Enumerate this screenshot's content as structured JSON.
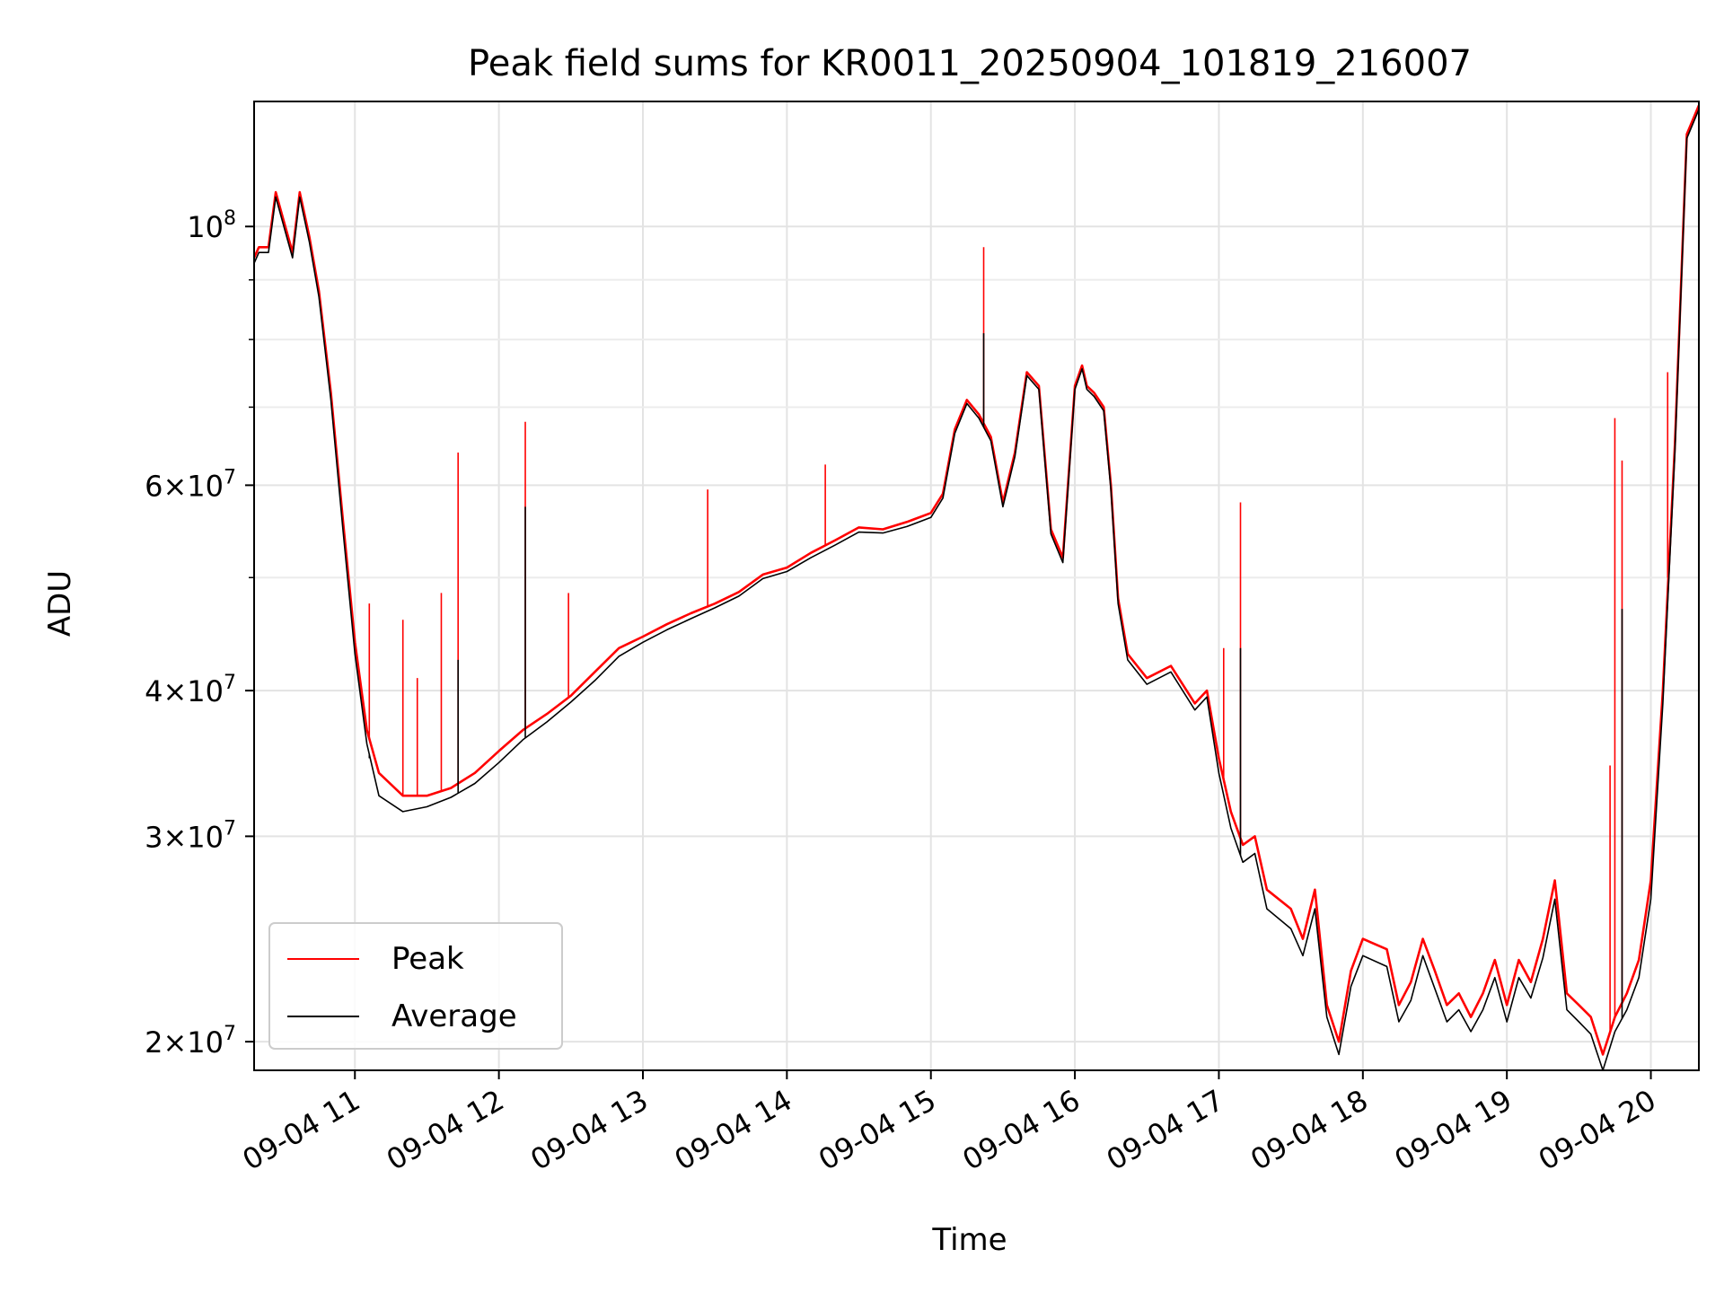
{
  "chart_data": {
    "type": "line",
    "title": "Peak field sums for KR0011_20250904_101819_216007",
    "xlabel": "Time",
    "ylabel": "ADU",
    "yscale": "log",
    "xlim": [
      "09-04 10:18",
      "09-04 20:20"
    ],
    "ylim": [
      18900000,
      128000000
    ],
    "grid": true,
    "legend_position": "lower-left",
    "x_ticks": [
      {
        "label": "09-04 11",
        "time": "11:00"
      },
      {
        "label": "09-04 12",
        "time": "12:00"
      },
      {
        "label": "09-04 13",
        "time": "13:00"
      },
      {
        "label": "09-04 14",
        "time": "14:00"
      },
      {
        "label": "09-04 15",
        "time": "15:00"
      },
      {
        "label": "09-04 16",
        "time": "16:00"
      },
      {
        "label": "09-04 17",
        "time": "17:00"
      },
      {
        "label": "09-04 18",
        "time": "18:00"
      },
      {
        "label": "09-04 19",
        "time": "19:00"
      },
      {
        "label": "09-04 20",
        "time": "20:00"
      }
    ],
    "y_ticks": [
      {
        "value": 100000000,
        "mant": "",
        "exp": "8"
      },
      {
        "value": 60000000,
        "mant": "6",
        "exp": "7"
      },
      {
        "value": 40000000,
        "mant": "4",
        "exp": "7"
      },
      {
        "value": 30000000,
        "mant": "3",
        "exp": "7"
      },
      {
        "value": 20000000,
        "mant": "2",
        "exp": "7"
      }
    ],
    "y_minor_ticks": [
      50000000,
      70000000,
      80000000,
      90000000
    ],
    "series": [
      {
        "name": "Peak",
        "color": "#ff0000",
        "points": [
          [
            "10:18",
            94000000
          ],
          [
            "10:20",
            96000000
          ],
          [
            "10:24",
            96000000
          ],
          [
            "10:27",
            107000000
          ],
          [
            "10:31",
            100000000
          ],
          [
            "10:34",
            95000000
          ],
          [
            "10:37",
            107000000
          ],
          [
            "10:41",
            98000000
          ],
          [
            "10:45",
            88000000
          ],
          [
            "10:50",
            72000000
          ],
          [
            "10:55",
            56000000
          ],
          [
            "11:00",
            44000000
          ],
          [
            "11:05",
            37000000
          ],
          [
            "11:10",
            34000000
          ],
          [
            "11:20",
            32500000
          ],
          [
            "11:30",
            32500000
          ],
          [
            "11:40",
            33000000
          ],
          [
            "11:50",
            34000000
          ],
          [
            "12:00",
            35500000
          ],
          [
            "12:10",
            37000000
          ],
          [
            "12:20",
            38200000
          ],
          [
            "12:30",
            39600000
          ],
          [
            "12:40",
            41500000
          ],
          [
            "12:50",
            43500000
          ],
          [
            "13:00",
            44500000
          ],
          [
            "13:10",
            45600000
          ],
          [
            "13:20",
            46600000
          ],
          [
            "13:30",
            47500000
          ],
          [
            "13:40",
            48600000
          ],
          [
            "13:50",
            50300000
          ],
          [
            "14:00",
            51000000
          ],
          [
            "14:10",
            52500000
          ],
          [
            "14:20",
            53800000
          ],
          [
            "14:30",
            55200000
          ],
          [
            "14:40",
            55000000
          ],
          [
            "14:50",
            55800000
          ],
          [
            "15:00",
            56800000
          ],
          [
            "15:05",
            59000000
          ],
          [
            "15:10",
            67000000
          ],
          [
            "15:15",
            71000000
          ],
          [
            "15:20",
            69000000
          ],
          [
            "15:25",
            66000000
          ],
          [
            "15:30",
            58000000
          ],
          [
            "15:35",
            64000000
          ],
          [
            "15:40",
            75000000
          ],
          [
            "15:45",
            73000000
          ],
          [
            "15:50",
            55000000
          ],
          [
            "15:55",
            52000000
          ],
          [
            "16:00",
            73000000
          ],
          [
            "16:03",
            76000000
          ],
          [
            "16:05",
            73000000
          ],
          [
            "16:08",
            72000000
          ],
          [
            "16:12",
            70000000
          ],
          [
            "16:15",
            60000000
          ],
          [
            "16:18",
            48000000
          ],
          [
            "16:22",
            43000000
          ],
          [
            "16:30",
            41000000
          ],
          [
            "16:40",
            42000000
          ],
          [
            "16:50",
            39000000
          ],
          [
            "16:55",
            40000000
          ],
          [
            "17:00",
            35000000
          ],
          [
            "17:05",
            31500000
          ],
          [
            "17:10",
            29500000
          ],
          [
            "17:15",
            30000000
          ],
          [
            "17:20",
            27000000
          ],
          [
            "17:30",
            26000000
          ],
          [
            "17:35",
            24500000
          ],
          [
            "17:40",
            27000000
          ],
          [
            "17:45",
            21500000
          ],
          [
            "17:50",
            20000000
          ],
          [
            "17:55",
            23000000
          ],
          [
            "18:00",
            24500000
          ],
          [
            "18:10",
            24000000
          ],
          [
            "18:15",
            21500000
          ],
          [
            "18:20",
            22500000
          ],
          [
            "18:25",
            24500000
          ],
          [
            "18:30",
            23000000
          ],
          [
            "18:35",
            21500000
          ],
          [
            "18:40",
            22000000
          ],
          [
            "18:45",
            21000000
          ],
          [
            "18:50",
            22000000
          ],
          [
            "18:55",
            23500000
          ],
          [
            "19:00",
            21500000
          ],
          [
            "19:05",
            23500000
          ],
          [
            "19:10",
            22500000
          ],
          [
            "19:15",
            24500000
          ],
          [
            "19:20",
            27500000
          ],
          [
            "19:25",
            22000000
          ],
          [
            "19:30",
            21500000
          ],
          [
            "19:35",
            21000000
          ],
          [
            "19:40",
            19500000
          ],
          [
            "19:45",
            21000000
          ],
          [
            "19:50",
            22000000
          ],
          [
            "19:55",
            23500000
          ],
          [
            "20:00",
            27500000
          ],
          [
            "20:05",
            40000000
          ],
          [
            "20:10",
            65000000
          ],
          [
            "20:15",
            120000000
          ],
          [
            "20:20",
            127000000
          ]
        ],
        "spikes": [
          [
            "11:06",
            47500000
          ],
          [
            "11:20",
            46000000
          ],
          [
            "11:26",
            41000000
          ],
          [
            "11:36",
            48500000
          ],
          [
            "11:43",
            64000000
          ],
          [
            "12:11",
            68000000
          ],
          [
            "12:29",
            48500000
          ],
          [
            "13:27",
            59500000
          ],
          [
            "14:16",
            62500000
          ],
          [
            "15:22",
            96000000
          ],
          [
            "17:02",
            43500000
          ],
          [
            "17:09",
            58000000
          ],
          [
            "19:43",
            34500000
          ],
          [
            "19:45",
            68500000
          ],
          [
            "19:48",
            63000000
          ],
          [
            "20:07",
            75000000
          ]
        ]
      },
      {
        "name": "Average",
        "color": "#000000",
        "points": [
          [
            "10:18",
            93000000
          ],
          [
            "10:20",
            95000000
          ],
          [
            "10:24",
            95000000
          ],
          [
            "10:27",
            106000000
          ],
          [
            "10:31",
            99000000
          ],
          [
            "10:34",
            94000000
          ],
          [
            "10:37",
            106000000
          ],
          [
            "10:41",
            97000000
          ],
          [
            "10:45",
            87000000
          ],
          [
            "10:50",
            71000000
          ],
          [
            "10:55",
            55000000
          ],
          [
            "11:00",
            43000000
          ],
          [
            "11:05",
            36000000
          ],
          [
            "11:10",
            32500000
          ],
          [
            "11:20",
            31500000
          ],
          [
            "11:30",
            31800000
          ],
          [
            "11:40",
            32400000
          ],
          [
            "11:50",
            33300000
          ],
          [
            "12:00",
            34700000
          ],
          [
            "12:10",
            36300000
          ],
          [
            "12:20",
            37600000
          ],
          [
            "12:30",
            39100000
          ],
          [
            "12:40",
            40800000
          ],
          [
            "12:50",
            42800000
          ],
          [
            "13:00",
            44000000
          ],
          [
            "13:10",
            45100000
          ],
          [
            "13:20",
            46100000
          ],
          [
            "13:30",
            47100000
          ],
          [
            "13:40",
            48200000
          ],
          [
            "13:50",
            49900000
          ],
          [
            "14:00",
            50600000
          ],
          [
            "14:10",
            52000000
          ],
          [
            "14:20",
            53300000
          ],
          [
            "14:30",
            54700000
          ],
          [
            "14:40",
            54600000
          ],
          [
            "14:50",
            55300000
          ],
          [
            "15:00",
            56300000
          ],
          [
            "15:05",
            58500000
          ],
          [
            "15:10",
            66500000
          ],
          [
            "15:15",
            70500000
          ],
          [
            "15:20",
            68500000
          ],
          [
            "15:25",
            65500000
          ],
          [
            "15:30",
            57500000
          ],
          [
            "15:35",
            63500000
          ],
          [
            "15:40",
            74500000
          ],
          [
            "15:45",
            72500000
          ],
          [
            "15:50",
            54500000
          ],
          [
            "15:55",
            51500000
          ],
          [
            "16:00",
            72500000
          ],
          [
            "16:03",
            75500000
          ],
          [
            "16:05",
            72500000
          ],
          [
            "16:08",
            71500000
          ],
          [
            "16:12",
            69500000
          ],
          [
            "16:15",
            59500000
          ],
          [
            "16:18",
            47500000
          ],
          [
            "16:22",
            42500000
          ],
          [
            "16:30",
            40500000
          ],
          [
            "16:40",
            41500000
          ],
          [
            "16:50",
            38500000
          ],
          [
            "16:55",
            39500000
          ],
          [
            "17:00",
            34000000
          ],
          [
            "17:05",
            30500000
          ],
          [
            "17:10",
            28500000
          ],
          [
            "17:15",
            29000000
          ],
          [
            "17:20",
            26000000
          ],
          [
            "17:30",
            25000000
          ],
          [
            "17:35",
            23700000
          ],
          [
            "17:40",
            26000000
          ],
          [
            "17:45",
            21000000
          ],
          [
            "17:50",
            19500000
          ],
          [
            "17:55",
            22300000
          ],
          [
            "18:00",
            23700000
          ],
          [
            "18:10",
            23200000
          ],
          [
            "18:15",
            20800000
          ],
          [
            "18:20",
            21700000
          ],
          [
            "18:25",
            23700000
          ],
          [
            "18:30",
            22200000
          ],
          [
            "18:35",
            20800000
          ],
          [
            "18:40",
            21300000
          ],
          [
            "18:45",
            20400000
          ],
          [
            "18:50",
            21300000
          ],
          [
            "18:55",
            22700000
          ],
          [
            "19:00",
            20800000
          ],
          [
            "19:05",
            22700000
          ],
          [
            "19:10",
            21800000
          ],
          [
            "19:15",
            23600000
          ],
          [
            "19:20",
            26500000
          ],
          [
            "19:25",
            21300000
          ],
          [
            "19:30",
            20800000
          ],
          [
            "19:35",
            20300000
          ],
          [
            "19:40",
            18900000
          ],
          [
            "19:45",
            20400000
          ],
          [
            "19:50",
            21300000
          ],
          [
            "19:55",
            22700000
          ],
          [
            "20:00",
            26500000
          ],
          [
            "20:05",
            39000000
          ],
          [
            "20:10",
            64000000
          ],
          [
            "20:15",
            119000000
          ],
          [
            "20:20",
            126000000
          ]
        ],
        "spikes": [
          [
            "11:06",
            35000000
          ],
          [
            "11:43",
            42500000
          ],
          [
            "12:11",
            57500000
          ],
          [
            "15:22",
            81000000
          ],
          [
            "17:09",
            43500000
          ],
          [
            "19:48",
            47000000
          ]
        ]
      }
    ]
  }
}
